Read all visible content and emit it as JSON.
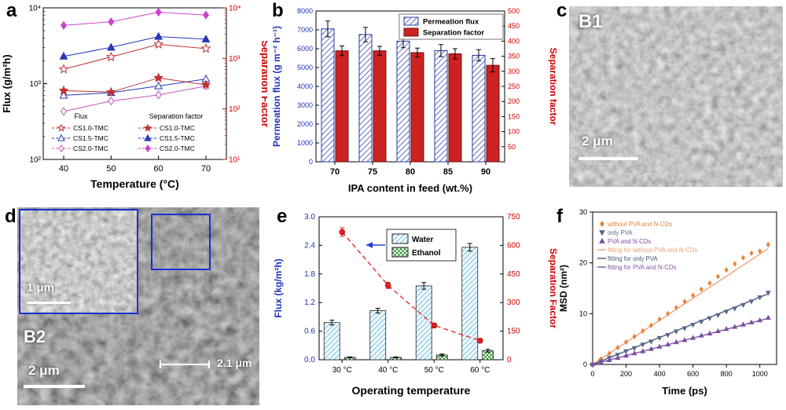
{
  "panels": {
    "a": {
      "label": "a"
    },
    "b": {
      "label": "b"
    },
    "c": {
      "label": "c",
      "tag": "B1",
      "scalebar": "2 μm"
    },
    "d": {
      "label": "d",
      "tag": "B2",
      "scalebar_main": "2 μm",
      "scalebar_right": "2.1 μm",
      "inset_scalebar": "1 μm"
    },
    "e": {
      "label": "e"
    },
    "f": {
      "label": "f"
    }
  },
  "chart_data": [
    {
      "panel": "a",
      "type": "line",
      "xlabel": "Temperature (°C)",
      "ylabel_left": "Flux (g/m²h)",
      "ylabel_right": "Separation Factor",
      "x": [
        40,
        50,
        60,
        70
      ],
      "y_left_scale": "log",
      "y_left_range": [
        100,
        10000
      ],
      "y_right_scale": "log",
      "y_right_range": [
        10,
        10000
      ],
      "axis_color_left": "#000000",
      "axis_color_right": "#cc0000",
      "legend": {
        "flux_header": "Flux",
        "sf_header": "Separation factor"
      },
      "series": [
        {
          "name": "CS1.0-TMC",
          "group": "flux",
          "axis": "left",
          "marker": "star",
          "filled": false,
          "color": "#c03030",
          "values": [
            1550,
            2250,
            3300,
            2900
          ]
        },
        {
          "name": "CS1.5-TMC",
          "group": "flux",
          "axis": "left",
          "marker": "triangle",
          "filled": false,
          "color": "#2836b8",
          "values": [
            700,
            760,
            930,
            1150
          ]
        },
        {
          "name": "CS2.0-TMC",
          "group": "flux",
          "axis": "left",
          "marker": "diamond",
          "filled": false,
          "color": "#c050c0",
          "values": [
            430,
            590,
            710,
            930
          ]
        },
        {
          "name": "CS1.0-TMC",
          "group": "separation_factor",
          "axis": "right",
          "marker": "star",
          "filled": true,
          "color": "#c03030",
          "values": [
            230,
            215,
            410,
            300
          ]
        },
        {
          "name": "CS1.5-TMC",
          "group": "separation_factor",
          "axis": "right",
          "marker": "triangle",
          "filled": true,
          "color": "#2836b8",
          "values": [
            1100,
            1650,
            2700,
            2400
          ]
        },
        {
          "name": "CS2.0-TMC",
          "group": "separation_factor",
          "axis": "right",
          "marker": "diamond",
          "filled": true,
          "color": "#cc44cc",
          "values": [
            4500,
            5300,
            8200,
            7200
          ]
        }
      ]
    },
    {
      "panel": "b",
      "type": "bar",
      "xlabel": "IPA content in feed (wt.%)",
      "ylabel_left": "Permeation flux (g m⁻² h⁻¹)",
      "ylabel_right": "Separation factor",
      "categories": [
        "70",
        "75",
        "80",
        "85",
        "90"
      ],
      "y_left_range": [
        0,
        8000
      ],
      "y_left_ticks": [
        0,
        1000,
        2000,
        3000,
        4000,
        5000,
        6000,
        7000,
        8000
      ],
      "y_right_range": [
        0,
        500
      ],
      "y_right_ticks": [
        50,
        100,
        150,
        200,
        250,
        300,
        350,
        400,
        450,
        500
      ],
      "axis_color_left": "#2030c0",
      "axis_color_right": "#cc0000",
      "series": [
        {
          "name": "Permeation flux",
          "axis": "left",
          "style": "hatched-blue",
          "color": "#3748b8",
          "values": [
            7050,
            6750,
            6400,
            5900,
            5650
          ],
          "errors": [
            420,
            380,
            350,
            320,
            300
          ]
        },
        {
          "name": "Separation factor",
          "axis": "right",
          "style": "solid-red",
          "color": "#cc2222",
          "values": [
            368,
            368,
            362,
            358,
            320
          ],
          "errors": [
            16,
            15,
            15,
            17,
            22
          ]
        }
      ]
    },
    {
      "panel": "e",
      "type": "bar-line",
      "xlabel": "Operating temperature",
      "ylabel_left": "Flux (kg/m²h)",
      "ylabel_right": "Separation Factor",
      "categories": [
        "30 °C",
        "40 °C",
        "50 °C",
        "60 °C"
      ],
      "y_left_range": [
        0,
        3.0
      ],
      "y_left_ticks": [
        "0.0",
        "0.6",
        "1.2",
        "1.8",
        "2.4",
        "3.0"
      ],
      "y_right_range": [
        0,
        750
      ],
      "y_right_ticks": [
        0,
        150,
        300,
        450,
        600,
        750
      ],
      "axis_color_left": "#2030c0",
      "axis_color_right": "#cc0000",
      "arrow_color": "#2040d0",
      "bar_series": [
        {
          "name": "Water",
          "style": "hatched-cyan",
          "color": "#5fb4dc",
          "values": [
            0.78,
            1.03,
            1.55,
            2.36
          ],
          "errors": [
            0.05,
            0.05,
            0.07,
            0.08
          ]
        },
        {
          "name": "Ethanol",
          "style": "hatched-green",
          "color": "#2f8f2f",
          "values": [
            0.05,
            0.05,
            0.1,
            0.19
          ],
          "errors": [
            0.01,
            0.01,
            0.02,
            0.03
          ]
        }
      ],
      "line_series": {
        "name": "Separation factor",
        "color": "#e02020",
        "values": [
          670,
          390,
          180,
          100
        ],
        "errors": [
          22,
          16,
          12,
          10
        ]
      }
    },
    {
      "panel": "f",
      "type": "scatter",
      "xlabel": "Time (ps)",
      "ylabel": "MSD (nm²)",
      "x_range": [
        0,
        1100
      ],
      "x_ticks": [
        0,
        200,
        400,
        600,
        800,
        1000
      ],
      "y_range": [
        0,
        30
      ],
      "y_ticks": [
        0,
        10,
        20,
        30
      ],
      "x": [
        0,
        50,
        100,
        150,
        200,
        250,
        300,
        350,
        400,
        450,
        500,
        550,
        600,
        650,
        700,
        750,
        800,
        850,
        900,
        950,
        1000,
        1050
      ],
      "scatter_series": [
        {
          "name": "without PVA and N-CDs",
          "marker": "diamond",
          "color": "#e8833c",
          "values": [
            0,
            1.1,
            2.2,
            3.3,
            4.4,
            5.5,
            6.6,
            7.7,
            8.9,
            10.0,
            11.2,
            12.4,
            13.6,
            14.8,
            16.0,
            17.3,
            18.6,
            19.8,
            21.0,
            21.9,
            22.3,
            23.6
          ]
        },
        {
          "name": "only PVA",
          "marker": "triangle-down",
          "color": "#56688c",
          "values": [
            0,
            0.6,
            1.3,
            1.9,
            2.6,
            3.2,
            3.9,
            4.5,
            5.2,
            5.8,
            6.5,
            7.1,
            7.8,
            8.4,
            9.1,
            9.7,
            10.4,
            11.0,
            11.7,
            12.4,
            13.2,
            14.1
          ]
        },
        {
          "name": "PVA and N-CDs",
          "marker": "triangle",
          "color": "#7b4fa0",
          "values": [
            0,
            0.4,
            0.85,
            1.3,
            1.75,
            2.2,
            2.6,
            3.05,
            3.5,
            3.95,
            4.4,
            4.8,
            5.25,
            5.7,
            6.1,
            6.55,
            7.0,
            7.4,
            7.85,
            8.3,
            8.7,
            9.2
          ]
        }
      ],
      "fit_series": [
        {
          "name": "fitting for without PVA and N-CDs",
          "color": "#f0a070",
          "points": [
            [
              0,
              0
            ],
            [
              1050,
              22.8
            ]
          ]
        },
        {
          "name": "fitting for only PVA",
          "color": "#47597a",
          "points": [
            [
              0,
              0
            ],
            [
              1050,
              13.9
            ]
          ]
        },
        {
          "name": "fitting for PVA and N-CDs",
          "color": "#8055a8",
          "points": [
            [
              0,
              0
            ],
            [
              1050,
              9.1
            ]
          ]
        }
      ]
    }
  ]
}
